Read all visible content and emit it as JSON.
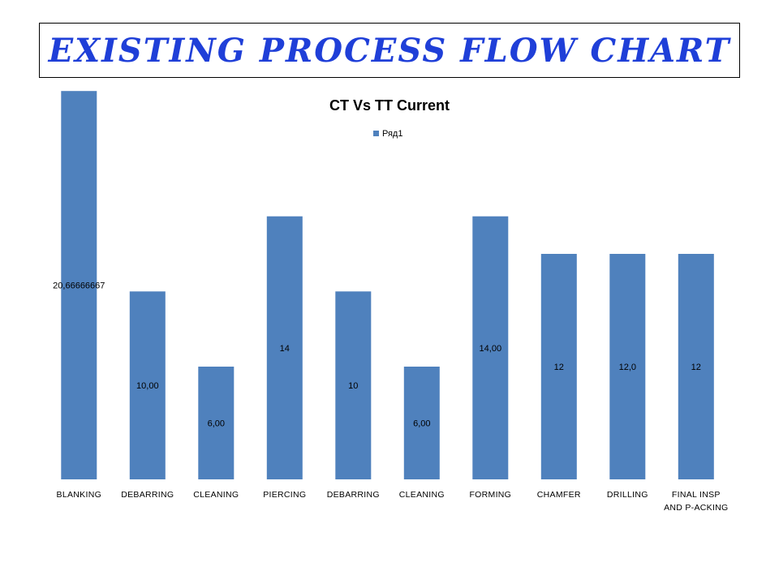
{
  "slide_title": "Existing Process Flow Chart",
  "chart_data": {
    "type": "bar",
    "title": "CT Vs TT Current",
    "legend": {
      "position": "top",
      "entries": [
        "Ряд1"
      ]
    },
    "color": "#4f81bd",
    "ylim": [
      0,
      24
    ],
    "grid": false,
    "categories": [
      "BLANKING",
      "DEBARRING",
      "CLEANING",
      "PIERCING",
      "DEBARRING",
      "CLEANING",
      "FORMING",
      "CHAMFER",
      "DRILLING",
      "FINAL INSP AND P-ACKING"
    ],
    "category_lines": [
      [
        "BLANKING"
      ],
      [
        "DEBARRING"
      ],
      [
        "CLEANING"
      ],
      [
        "PIERCING"
      ],
      [
        "DEBARRING"
      ],
      [
        "CLEANING"
      ],
      [
        "FORMING"
      ],
      [
        "CHAMFER"
      ],
      [
        "DRILLING"
      ],
      [
        "FINAL INSP",
        "AND P-ACKING"
      ]
    ],
    "series": [
      {
        "name": "Ряд1",
        "values": [
          20.66666667,
          10,
          6,
          14,
          10,
          6,
          14,
          12,
          12,
          12
        ],
        "labels": [
          "20,66666667",
          "10,00",
          "6,00",
          "14",
          "10",
          "6,00",
          "14,00",
          "12",
          "12,0",
          "12"
        ]
      }
    ]
  }
}
